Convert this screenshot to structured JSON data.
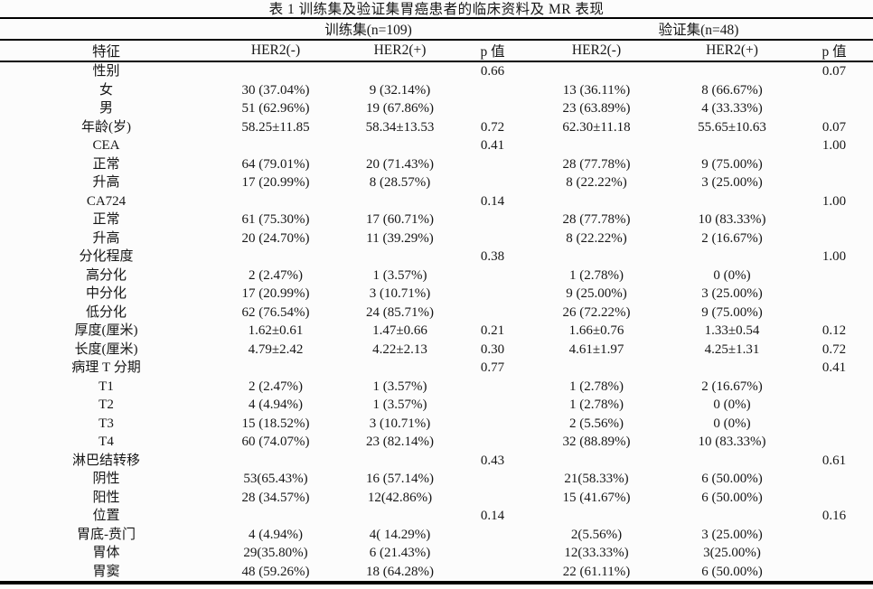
{
  "title": "表 1 训练集及验证集胃癌患者的临床资料及 MR 表现",
  "table": {
    "group_headers": [
      {
        "label": "训练集(n=109)"
      },
      {
        "label": "验证集(n=48)"
      }
    ],
    "columns": [
      "特征",
      "HER2(-)",
      "HER2(+)",
      "p 值",
      "HER2(-)",
      "HER2(+)",
      "p 值"
    ],
    "rows": [
      [
        "性别",
        "",
        "",
        "0.66",
        "",
        "",
        "0.07"
      ],
      [
        "女",
        "30 (37.04%)",
        "9 (32.14%)",
        "",
        "13 (36.11%)",
        "8 (66.67%)",
        ""
      ],
      [
        "男",
        "51 (62.96%)",
        "19 (67.86%)",
        "",
        "23 (63.89%)",
        "4 (33.33%)",
        ""
      ],
      [
        "年龄(岁)",
        "58.25±11.85",
        "58.34±13.53",
        "0.72",
        "62.30±11.18",
        "55.65±10.63",
        "0.07"
      ],
      [
        "CEA",
        "",
        "",
        "0.41",
        "",
        "",
        "1.00"
      ],
      [
        "正常",
        "64 (79.01%)",
        "20 (71.43%)",
        "",
        "28 (77.78%)",
        "9 (75.00%)",
        ""
      ],
      [
        "升高",
        "17 (20.99%)",
        "8 (28.57%)",
        "",
        "8 (22.22%)",
        "3 (25.00%)",
        ""
      ],
      [
        "CA724",
        "",
        "",
        "0.14",
        "",
        "",
        "1.00"
      ],
      [
        "正常",
        "61 (75.30%)",
        "17 (60.71%)",
        "",
        "28 (77.78%)",
        "10 (83.33%)",
        ""
      ],
      [
        "升高",
        "20 (24.70%)",
        "11 (39.29%)",
        "",
        "8 (22.22%)",
        "2 (16.67%)",
        ""
      ],
      [
        "分化程度",
        "",
        "",
        "0.38",
        "",
        "",
        "1.00"
      ],
      [
        "高分化",
        "2 (2.47%)",
        "1 (3.57%)",
        "",
        "1 (2.78%)",
        "0 (0%)",
        ""
      ],
      [
        "中分化",
        "17 (20.99%)",
        "3 (10.71%)",
        "",
        "9 (25.00%)",
        "3 (25.00%)",
        ""
      ],
      [
        "低分化",
        "62 (76.54%)",
        "24 (85.71%)",
        "",
        "26 (72.22%)",
        "9 (75.00%)",
        ""
      ],
      [
        "厚度(厘米)",
        "1.62±0.61",
        "1.47±0.66",
        "0.21",
        "1.66±0.76",
        "1.33±0.54",
        "0.12"
      ],
      [
        "长度(厘米)",
        "4.79±2.42",
        "4.22±2.13",
        "0.30",
        "4.61±1.97",
        "4.25±1.31",
        "0.72"
      ],
      [
        "病理 T 分期",
        "",
        "",
        "0.77",
        "",
        "",
        "0.41"
      ],
      [
        "T1",
        "2 (2.47%)",
        "1 (3.57%)",
        "",
        "1 (2.78%)",
        "2 (16.67%)",
        ""
      ],
      [
        "T2",
        "4 (4.94%)",
        "1 (3.57%)",
        "",
        "1 (2.78%)",
        "0 (0%)",
        ""
      ],
      [
        "T3",
        "15 (18.52%)",
        "3 (10.71%)",
        "",
        "2 (5.56%)",
        "0 (0%)",
        ""
      ],
      [
        "T4",
        "60 (74.07%)",
        "23 (82.14%)",
        "",
        "32 (88.89%)",
        "10 (83.33%)",
        ""
      ],
      [
        "淋巴结转移",
        "",
        "",
        "0.43",
        "",
        "",
        "0.61"
      ],
      [
        "阴性",
        "53(65.43%)",
        "16 (57.14%)",
        "",
        "21(58.33%)",
        "6 (50.00%)",
        ""
      ],
      [
        "阳性",
        "28 (34.57%)",
        "12(42.86%)",
        "",
        "15 (41.67%)",
        "6 (50.00%)",
        ""
      ],
      [
        "位置",
        "",
        "",
        "0.14",
        "",
        "",
        "0.16"
      ],
      [
        "胃底-贲门",
        "4 (4.94%)",
        "4( 14.29%)",
        "",
        "2(5.56%)",
        "3 (25.00%)",
        ""
      ],
      [
        "胃体",
        "29(35.80%)",
        "6 (21.43%)",
        "",
        "12(33.33%)",
        "3(25.00%)",
        ""
      ],
      [
        "胃窦",
        "48 (59.26%)",
        "18 (64.28%)",
        "",
        "22 (61.11%)",
        "6 (50.00%)",
        ""
      ]
    ]
  }
}
